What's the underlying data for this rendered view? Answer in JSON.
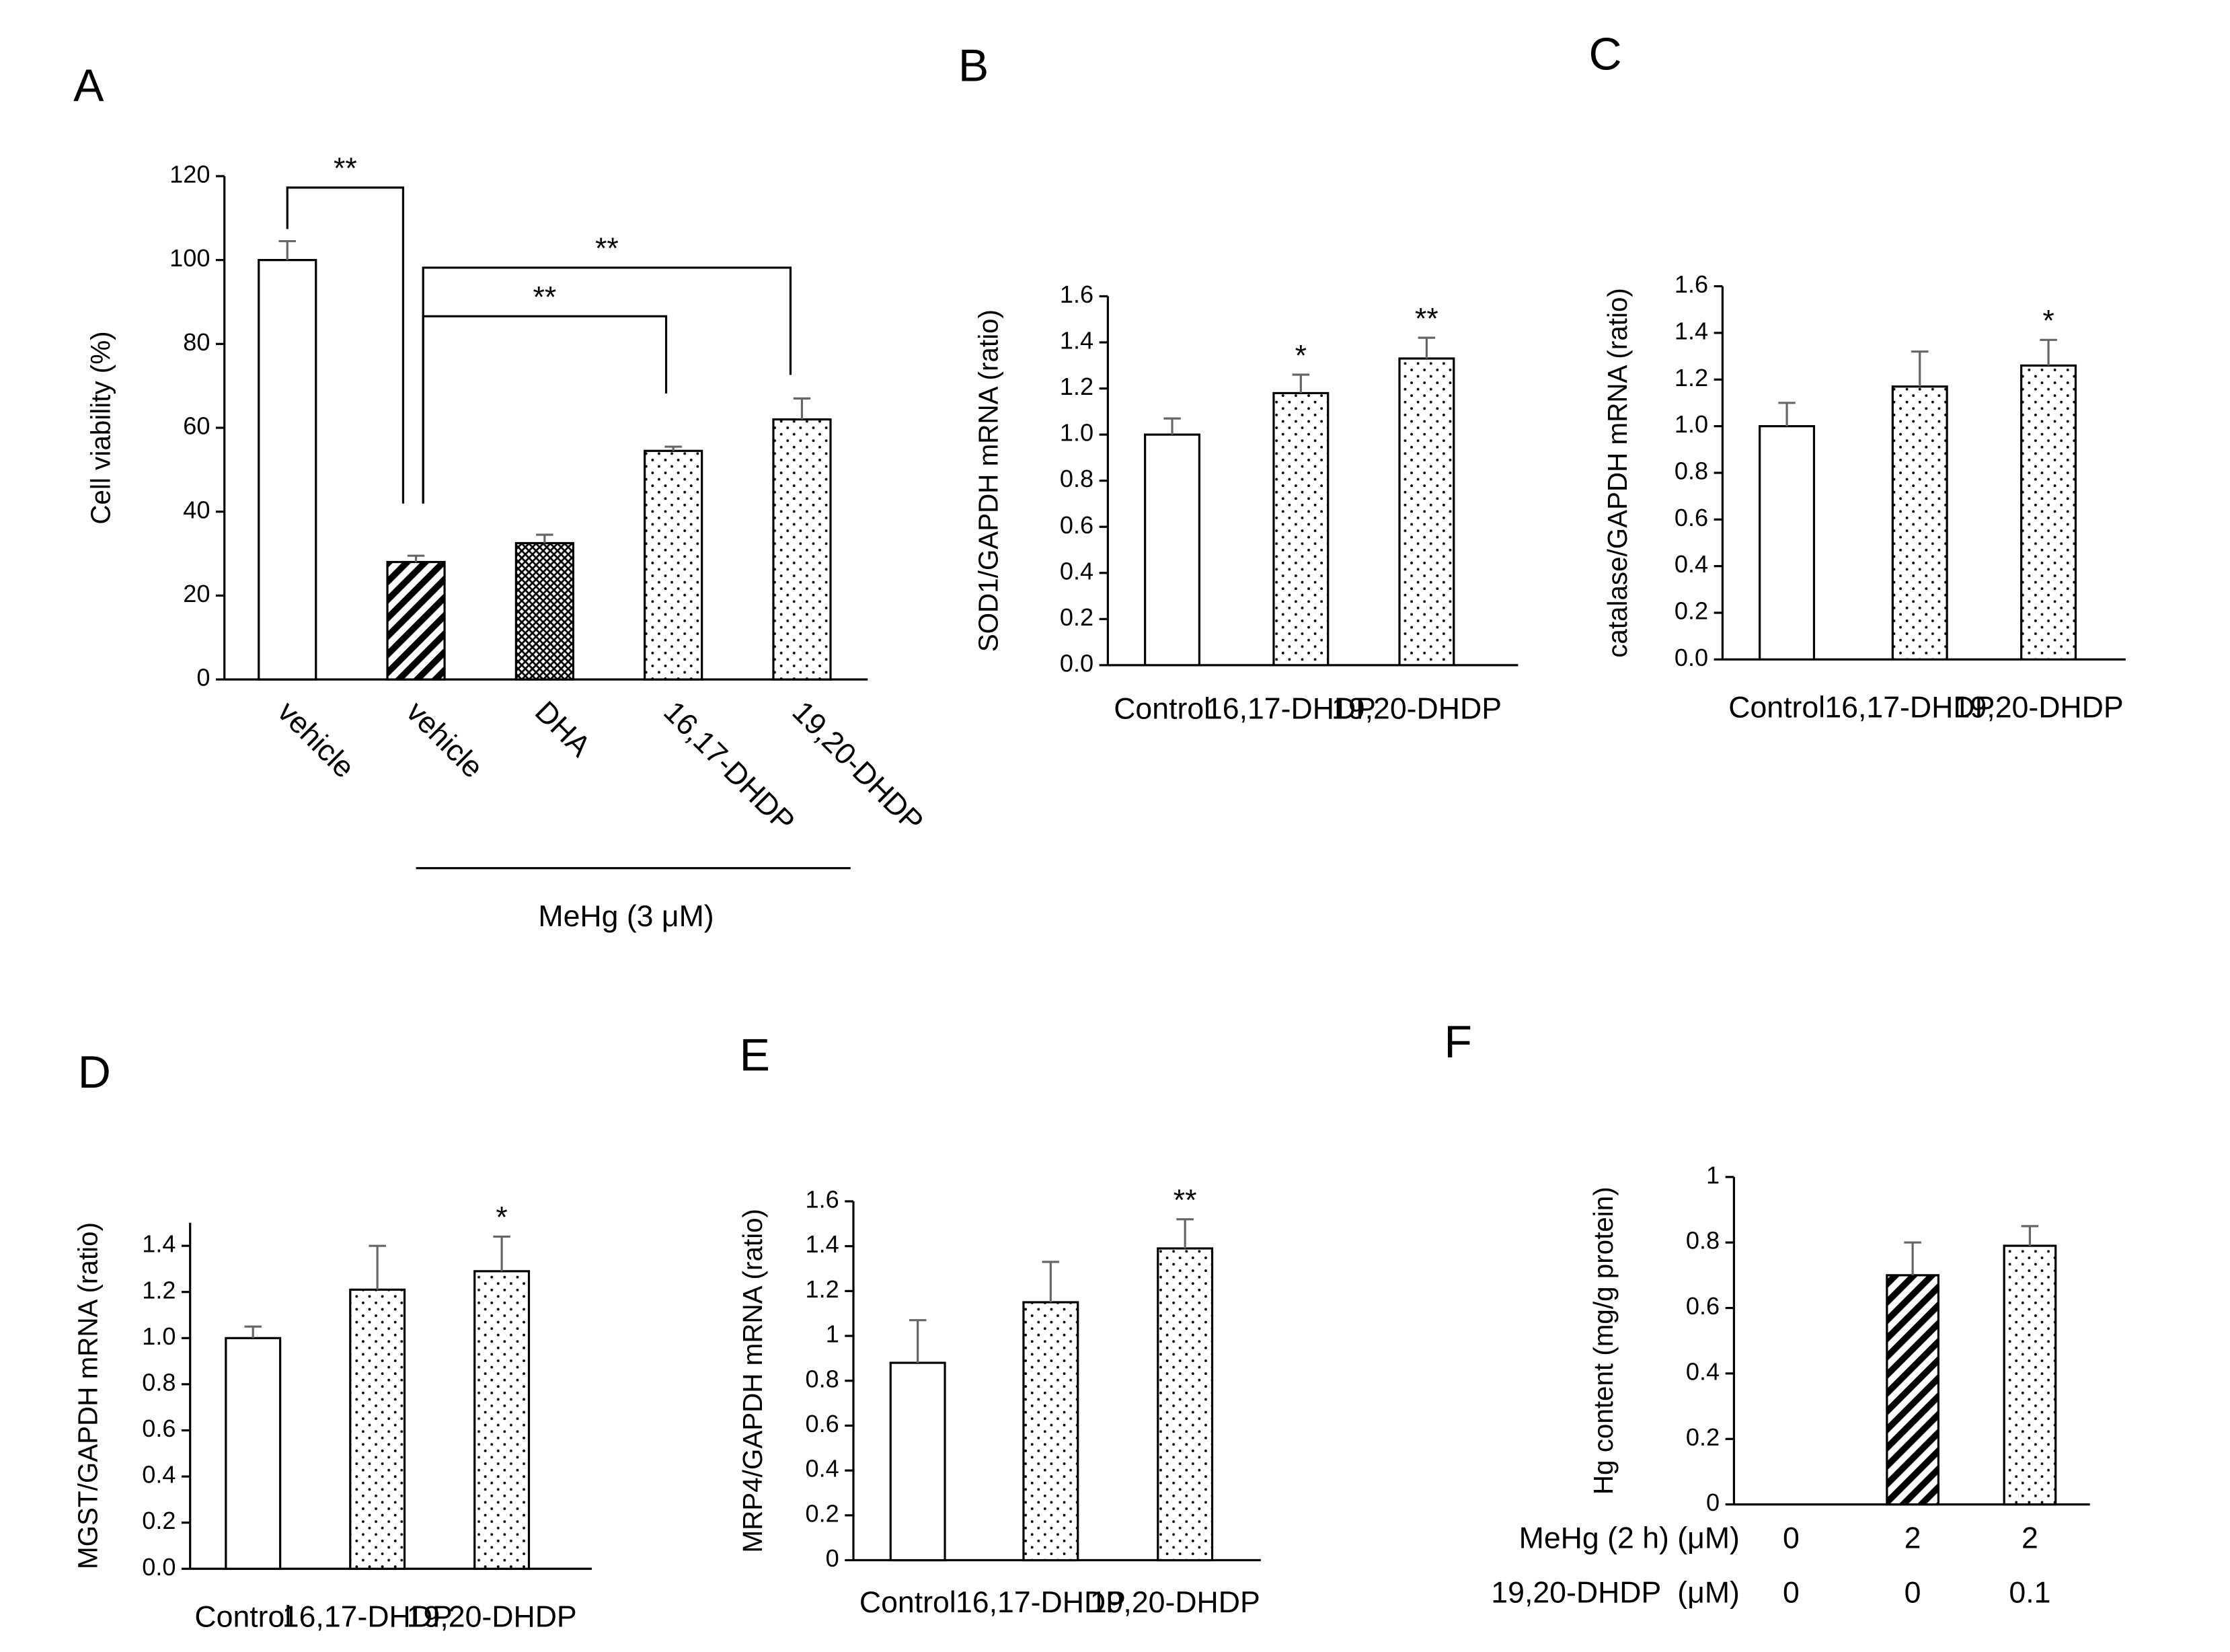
{
  "chart_data": [
    {
      "type": "bar",
      "title": "A",
      "y_label": "Cell viability (%)",
      "categories": [
        "vehicle",
        "vehicle",
        "DHA",
        "16,17-DHDP",
        "19,20-DHDP"
      ],
      "values": [
        100,
        28,
        32.5,
        54.5,
        62
      ],
      "errors": [
        4.5,
        1.5,
        2,
        1,
        5
      ],
      "patterns": [
        "none",
        "hatch",
        "crosshatch",
        "dots",
        "dots"
      ],
      "ylim": [
        0,
        120
      ],
      "yticks": [
        0,
        20,
        40,
        60,
        80,
        100,
        120
      ],
      "group_label": "MeHg (3 μM)",
      "brackets": [
        {
          "from": 0,
          "to": 1,
          "text": "**"
        },
        {
          "from": 1,
          "to": 3,
          "text": "**"
        },
        {
          "from": 1,
          "to": 4,
          "text": "**"
        }
      ]
    },
    {
      "type": "bar",
      "title": "B",
      "y_label": "SOD1/GAPDH mRNA (ratio)",
      "categories": [
        "Control",
        "16,17-DHDP",
        "19,20-DHDP"
      ],
      "values": [
        1.0,
        1.18,
        1.33
      ],
      "errors": [
        0.07,
        0.08,
        0.09
      ],
      "patterns": [
        "none",
        "dots",
        "dots"
      ],
      "ylim": [
        0,
        1.6
      ],
      "yticks": [
        {
          "value": 0,
          "label": "0.0"
        },
        0.2,
        0.4,
        0.6,
        0.8,
        {
          "value": 1,
          "label": "1.0"
        },
        1.2,
        1.4,
        1.6
      ],
      "annotations": [
        {
          "category": 1,
          "text": "*"
        },
        {
          "category": 2,
          "text": "**"
        }
      ]
    },
    {
      "type": "bar",
      "title": "C",
      "y_label": "catalase/GAPDH mRNA (ratio)",
      "categories": [
        "Control",
        "16,17-DHDP",
        "19,20-DHDP"
      ],
      "values": [
        1.0,
        1.17,
        1.26
      ],
      "errors": [
        0.1,
        0.15,
        0.11
      ],
      "patterns": [
        "none",
        "dots",
        "dots"
      ],
      "ylim": [
        0,
        1.6
      ],
      "yticks": [
        {
          "value": 0,
          "label": "0.0"
        },
        0.2,
        0.4,
        0.6,
        0.8,
        {
          "value": 1,
          "label": "1.0"
        },
        1.2,
        1.4,
        1.6
      ],
      "annotations": [
        {
          "category": 2,
          "text": "*"
        }
      ]
    },
    {
      "type": "bar",
      "title": "D",
      "y_label": "MGST/GAPDH mRNA (ratio)",
      "categories": [
        "Control",
        "16,17-DHDP",
        "19,20-DHDP"
      ],
      "values": [
        1.0,
        1.21,
        1.29
      ],
      "errors": [
        0.05,
        0.19,
        0.15
      ],
      "patterns": [
        "none",
        "dots",
        "dots"
      ],
      "ylim": [
        0,
        1.5
      ],
      "yticks": [
        {
          "value": 0,
          "label": "0.0"
        },
        0.2,
        0.4,
        0.6,
        0.8,
        {
          "value": 1,
          "label": "1.0"
        },
        1.2,
        1.4
      ],
      "annotations": [
        {
          "category": 2,
          "text": "*"
        }
      ]
    },
    {
      "type": "bar",
      "title": "E",
      "y_label": "MRP4/GAPDH mRNA (ratio)",
      "categories": [
        "Control",
        "16,17-DHDP",
        "19,20-DHDP"
      ],
      "values": [
        0.88,
        1.15,
        1.39
      ],
      "errors": [
        0.19,
        0.18,
        0.13
      ],
      "patterns": [
        "none",
        "dots",
        "dots"
      ],
      "ylim": [
        0,
        1.6
      ],
      "yticks": [
        0,
        0.2,
        0.4,
        0.6,
        0.8,
        1,
        1.2,
        1.4,
        1.6
      ],
      "annotations": [
        {
          "category": 2,
          "text": "**"
        }
      ]
    },
    {
      "type": "bar",
      "title": "F",
      "y_label": "Hg content (mg/g protein)",
      "values": [
        0,
        0.7,
        0.79
      ],
      "errors": [
        0,
        0.1,
        0.06
      ],
      "patterns": [
        "none",
        "hatch",
        "dots"
      ],
      "ylim": [
        0,
        1
      ],
      "yticks": [
        0,
        0.2,
        0.4,
        0.6,
        0.8,
        1
      ],
      "condition_rows": [
        {
          "label": "MeHg (2 h) (μM)",
          "values": [
            "0",
            "2",
            "2"
          ]
        },
        {
          "label": "19,20-DHDP  (μM)",
          "values": [
            "0",
            "0",
            "0.1"
          ]
        }
      ]
    }
  ]
}
